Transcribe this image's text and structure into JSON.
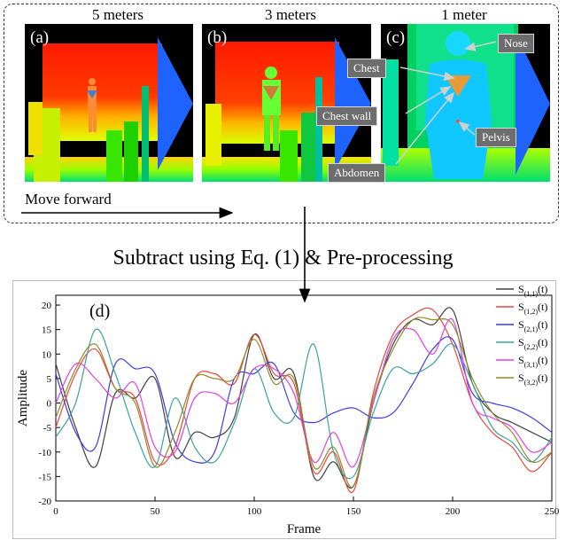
{
  "panels": [
    {
      "letter": "(a)",
      "title": "5 meters"
    },
    {
      "letter": "(b)",
      "title": "3 meters"
    },
    {
      "letter": "(c)",
      "title": "1 meter"
    }
  ],
  "callouts": {
    "nose": "Nose",
    "chest": "Chest",
    "chest_wall": "Chest wall",
    "pelvis": "Pelvis",
    "abdomen": "Abdomen"
  },
  "move_label": "Move forward",
  "process_label": "Subtract using Eq. (1)  & Pre-processing",
  "colors": {
    "dash_border": "#333333",
    "callout_bg": "#6d6d6d",
    "depth_near": "#00e5ff",
    "depth_far": "#ff1a00"
  },
  "chart_data": {
    "type": "line",
    "panel_label": "(d)",
    "xlabel": "Frame",
    "ylabel": "Amplitude",
    "xlim": [
      0,
      250
    ],
    "ylim": [
      -20,
      22
    ],
    "xticks": [
      0,
      50,
      100,
      150,
      200,
      250
    ],
    "yticks": [
      -20,
      -15,
      -10,
      -5,
      0,
      5,
      10,
      15,
      20
    ],
    "legend_position": "top-right",
    "x": [
      0,
      10,
      20,
      30,
      40,
      50,
      60,
      70,
      80,
      90,
      100,
      110,
      120,
      130,
      140,
      150,
      160,
      170,
      180,
      190,
      200,
      210,
      220,
      230,
      240,
      250
    ],
    "series": [
      {
        "name": "S",
        "sub": "(1,1)",
        "arg": "(t)",
        "color": "#404040",
        "values": [
          8,
          -5,
          -13,
          2,
          1,
          5,
          -11,
          -6,
          -7,
          -3,
          14,
          5,
          6,
          -15,
          -12,
          -17,
          0,
          12,
          17,
          16,
          19,
          4,
          -2,
          -4,
          -6,
          -8
        ]
      },
      {
        "name": "S",
        "sub": "(1,2)",
        "arg": "(t)",
        "color": "#e8473a",
        "values": [
          -5,
          6,
          11,
          3,
          1,
          -12,
          -9,
          5,
          6,
          4,
          14,
          6,
          4,
          -14,
          -10,
          -18,
          2,
          14,
          18,
          19,
          12,
          0,
          -6,
          -9,
          -14,
          -10
        ]
      },
      {
        "name": "S",
        "sub": "(2,1)",
        "arg": "(t)",
        "color": "#3b3be0",
        "values": [
          6,
          -6,
          -9,
          8,
          7,
          6,
          -8,
          -12,
          -10,
          5,
          6,
          8,
          -2,
          -4,
          -2,
          -1,
          -3,
          -2,
          4,
          11,
          13,
          2,
          0,
          -1,
          -3,
          -6
        ]
      },
      {
        "name": "S",
        "sub": "(2,2)",
        "arg": "(t)",
        "color": "#3aa39a",
        "values": [
          -7,
          0,
          15,
          6,
          -6,
          -13,
          1,
          -9,
          -12,
          -4,
          7,
          -2,
          -3,
          12,
          -10,
          -15,
          -2,
          7,
          6,
          8,
          12,
          4,
          -5,
          -8,
          -12,
          -7
        ]
      },
      {
        "name": "S",
        "sub": "(3,1)",
        "arg": "(t)",
        "color": "#e040e0",
        "values": [
          0,
          8,
          5,
          1,
          4,
          -9,
          -10,
          1,
          2,
          0,
          7,
          7,
          2,
          -12,
          -6,
          -13,
          0,
          13,
          15,
          10,
          17,
          0,
          -3,
          -5,
          -10,
          -8
        ]
      },
      {
        "name": "S",
        "sub": "(3,2)",
        "arg": "(t)",
        "color": "#8f8a2a",
        "values": [
          -3,
          7,
          12,
          3,
          0,
          -13,
          -6,
          5,
          5,
          5,
          13,
          4,
          5,
          -13,
          -9,
          -17,
          1,
          11,
          17,
          17,
          16,
          5,
          -2,
          -6,
          -12,
          -10
        ]
      }
    ]
  }
}
